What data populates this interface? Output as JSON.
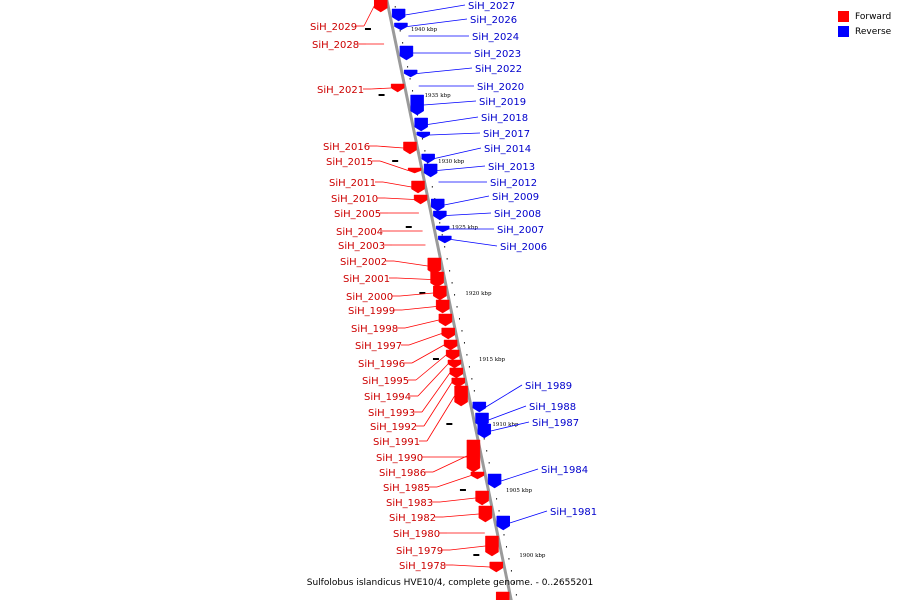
{
  "caption": "Sulfolobus islandicus HVE10/4, complete genome. - 0..2655201",
  "legend": {
    "forward": {
      "label": "Forward",
      "color": "#ff0000"
    },
    "reverse": {
      "label": "Reverse",
      "color": "#0000ff"
    }
  },
  "colors": {
    "forward": "#ff0000",
    "forward_label": "#cc0000",
    "reverse": "#0000ff",
    "reverse_label": "#0000cc",
    "backbone": "#9a9a9a"
  },
  "kbp_marks": [
    {
      "kbp": 1940,
      "label": "1940 kbp"
    },
    {
      "kbp": 1935,
      "label": "1935 kbp"
    },
    {
      "kbp": 1930,
      "label": "1930 kbp"
    },
    {
      "kbp": 1925,
      "label": "1925 kbp"
    },
    {
      "kbp": 1920,
      "label": "1920 kbp"
    },
    {
      "kbp": 1915,
      "label": "1915 kbp"
    },
    {
      "kbp": 1910,
      "label": "1910 kbp"
    },
    {
      "kbp": 1905,
      "label": "1905 kbp"
    },
    {
      "kbp": 1900,
      "label": "1900 kbp"
    }
  ],
  "genes": [
    {
      "name": "SiH_2029",
      "strand": "forward"
    },
    {
      "name": "SiH_2028",
      "strand": "forward"
    },
    {
      "name": "SiH_2027",
      "strand": "reverse"
    },
    {
      "name": "SiH_2026",
      "strand": "reverse"
    },
    {
      "name": "SiH_2024",
      "strand": "reverse"
    },
    {
      "name": "SiH_2023",
      "strand": "reverse"
    },
    {
      "name": "SiH_2022",
      "strand": "reverse"
    },
    {
      "name": "SiH_2021",
      "strand": "forward"
    },
    {
      "name": "SiH_2020",
      "strand": "reverse"
    },
    {
      "name": "SiH_2019",
      "strand": "reverse"
    },
    {
      "name": "SiH_2018",
      "strand": "reverse"
    },
    {
      "name": "SiH_2017",
      "strand": "reverse"
    },
    {
      "name": "SiH_2016",
      "strand": "forward"
    },
    {
      "name": "SiH_2015",
      "strand": "forward"
    },
    {
      "name": "SiH_2014",
      "strand": "reverse"
    },
    {
      "name": "SiH_2013",
      "strand": "reverse"
    },
    {
      "name": "SiH_2012",
      "strand": "reverse"
    },
    {
      "name": "SiH_2011",
      "strand": "forward"
    },
    {
      "name": "SiH_2010",
      "strand": "forward"
    },
    {
      "name": "SiH_2009",
      "strand": "reverse"
    },
    {
      "name": "SiH_2008",
      "strand": "reverse"
    },
    {
      "name": "SiH_2007",
      "strand": "reverse"
    },
    {
      "name": "SiH_2006",
      "strand": "reverse"
    },
    {
      "name": "SiH_2005",
      "strand": "forward"
    },
    {
      "name": "SiH_2004",
      "strand": "forward"
    },
    {
      "name": "SiH_2003",
      "strand": "forward"
    },
    {
      "name": "SiH_2002",
      "strand": "forward"
    },
    {
      "name": "SiH_2001",
      "strand": "forward"
    },
    {
      "name": "SiH_2000",
      "strand": "forward"
    },
    {
      "name": "SiH_1999",
      "strand": "forward"
    },
    {
      "name": "SiH_1998",
      "strand": "forward"
    },
    {
      "name": "SiH_1997",
      "strand": "forward"
    },
    {
      "name": "SiH_1996",
      "strand": "forward"
    },
    {
      "name": "SiH_1995",
      "strand": "forward"
    },
    {
      "name": "SiH_1994",
      "strand": "forward"
    },
    {
      "name": "SiH_1993",
      "strand": "forward"
    },
    {
      "name": "SiH_1992",
      "strand": "forward"
    },
    {
      "name": "SiH_1991",
      "strand": "forward"
    },
    {
      "name": "SiH_1990",
      "strand": "forward"
    },
    {
      "name": "SiH_1989",
      "strand": "reverse"
    },
    {
      "name": "SiH_1988",
      "strand": "reverse"
    },
    {
      "name": "SiH_1987",
      "strand": "reverse"
    },
    {
      "name": "SiH_1986",
      "strand": "forward"
    },
    {
      "name": "SiH_1985",
      "strand": "forward"
    },
    {
      "name": "SiH_1984",
      "strand": "reverse"
    },
    {
      "name": "SiH_1983",
      "strand": "forward"
    },
    {
      "name": "SiH_1982",
      "strand": "forward"
    },
    {
      "name": "SiH_1981",
      "strand": "reverse"
    },
    {
      "name": "SiH_1980",
      "strand": "forward"
    },
    {
      "name": "SiH_1979",
      "strand": "forward"
    },
    {
      "name": "SiH_1978",
      "strand": "forward"
    }
  ]
}
